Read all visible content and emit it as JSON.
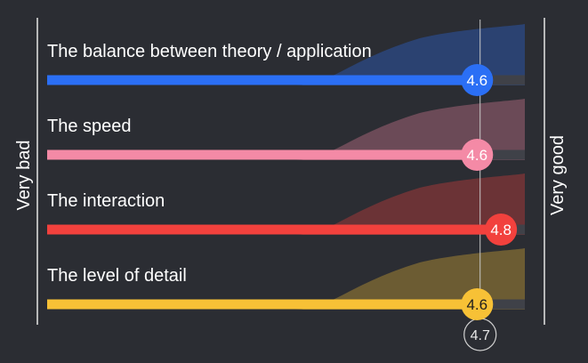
{
  "chart_data": {
    "type": "bar",
    "orientation": "horizontal",
    "scale_min_label": "Very bad",
    "scale_max_label": "Very good",
    "xlim": [
      1,
      5
    ],
    "categories": [
      "The balance between theory / application",
      "The speed",
      "The interaction",
      "The level of detail"
    ],
    "values": [
      4.6,
      4.6,
      4.8,
      4.6
    ],
    "value_labels": [
      "4.6",
      "4.6",
      "4.8",
      "4.6"
    ],
    "colors": [
      "#2b6ff5",
      "#f48aa6",
      "#f2413d",
      "#f7c136"
    ],
    "overall_average": 4.7,
    "overall_average_label": "4.7",
    "distribution_shape": "response-distribution area behind each bar, ramping up toward the high end",
    "grid": false,
    "legend": "none"
  }
}
